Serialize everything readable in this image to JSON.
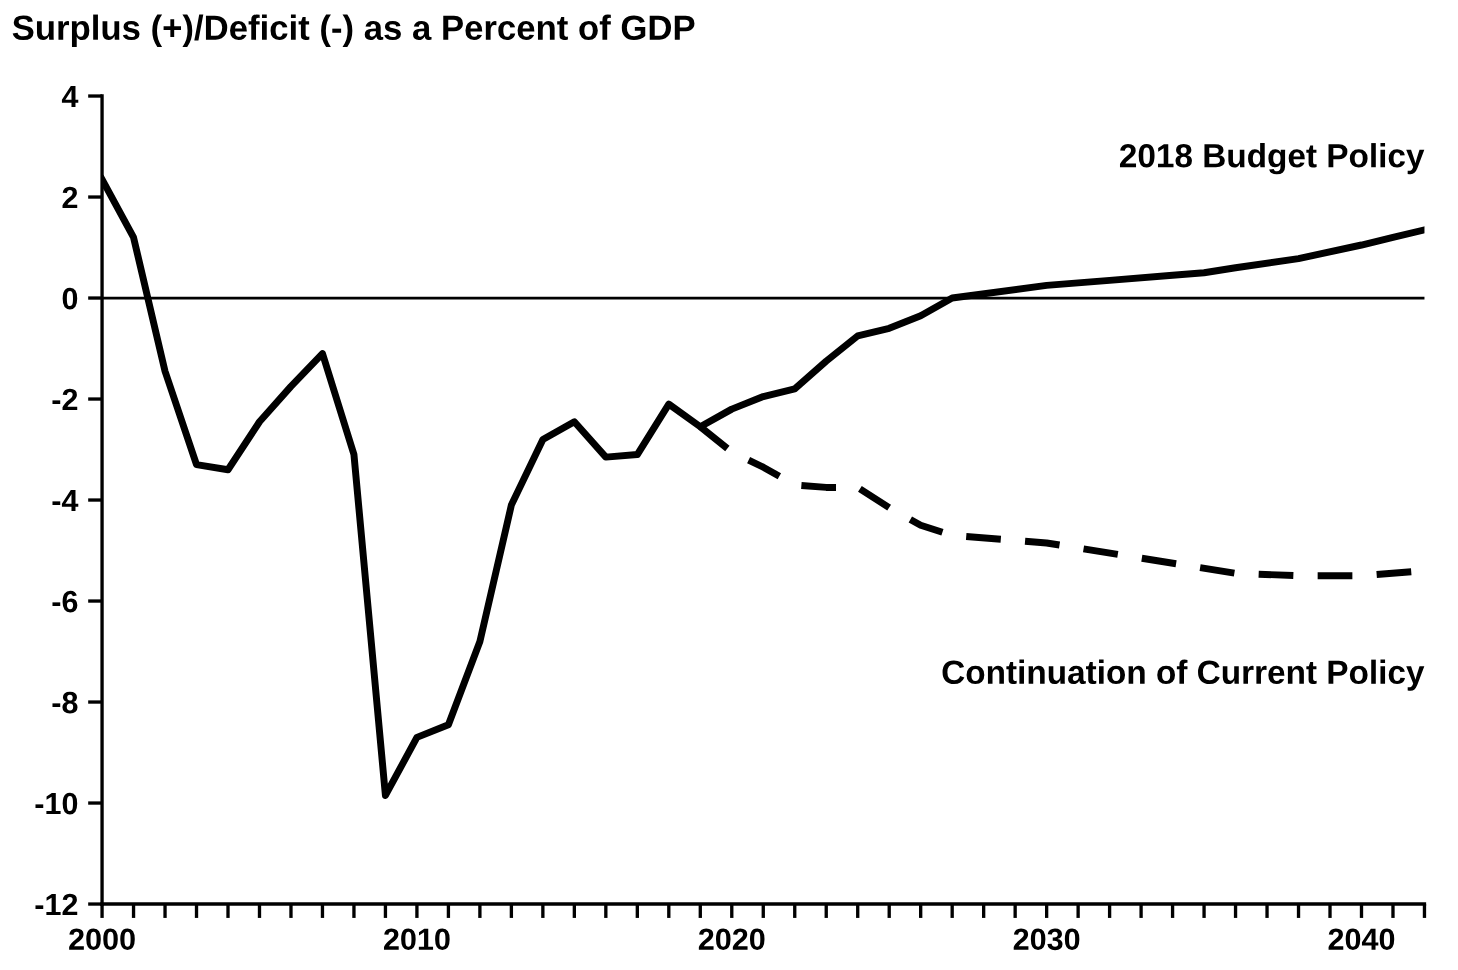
{
  "chart_data": {
    "type": "line",
    "title": "Surplus (+)/Deficit (-) as a Percent of GDP",
    "series": [
      {
        "name": "2018 Budget Policy",
        "color": "#000000",
        "line_style": "solid",
        "x": [
          2000,
          2001,
          2002,
          2003,
          2004,
          2005,
          2006,
          2007,
          2008,
          2009,
          2010,
          2011,
          2012,
          2013,
          2014,
          2015,
          2016,
          2017,
          2018,
          2019,
          2020,
          2021,
          2022,
          2023,
          2024,
          2025,
          2026,
          2027,
          2030,
          2032,
          2034,
          2035,
          2036,
          2038,
          2040,
          2041,
          2042
        ],
        "values": [
          2.35,
          1.2,
          -1.45,
          -3.3,
          -3.4,
          -2.45,
          -1.75,
          -1.1,
          -3.1,
          -9.85,
          -8.7,
          -8.45,
          -6.8,
          -4.1,
          -2.8,
          -2.45,
          -3.15,
          -3.1,
          -2.1,
          -2.55,
          -2.2,
          -1.95,
          -1.8,
          -1.25,
          -0.75,
          -0.6,
          -0.35,
          0.0,
          0.25,
          0.35,
          0.45,
          0.5,
          0.6,
          0.78,
          1.05,
          1.2,
          1.35
        ]
      },
      {
        "name": "Continuation of Current Policy",
        "color": "#000000",
        "line_style": "dashed",
        "x": [
          2019,
          2020,
          2021,
          2022,
          2023,
          2024,
          2025,
          2026,
          2027,
          2030,
          2033,
          2036,
          2038,
          2040,
          2042
        ],
        "values": [
          -2.55,
          -3.05,
          -3.35,
          -3.7,
          -3.75,
          -3.75,
          -4.15,
          -4.5,
          -4.7,
          -4.85,
          -5.15,
          -5.45,
          -5.5,
          -5.5,
          -5.4
        ]
      }
    ],
    "xlim": [
      2000,
      2042
    ],
    "xticks": [
      2000,
      {
        "value": 2001,
        "label": null
      },
      {
        "value": 2002,
        "label": null
      },
      {
        "value": 2003,
        "label": null
      },
      {
        "value": 2004,
        "label": null
      },
      {
        "value": 2005,
        "label": null
      },
      {
        "value": 2006,
        "label": null
      },
      {
        "value": 2007,
        "label": null
      },
      {
        "value": 2008,
        "label": null
      },
      {
        "value": 2009,
        "label": null
      },
      2010,
      {
        "value": 2011,
        "label": null
      },
      {
        "value": 2012,
        "label": null
      },
      {
        "value": 2013,
        "label": null
      },
      {
        "value": 2014,
        "label": null
      },
      {
        "value": 2015,
        "label": null
      },
      {
        "value": 2016,
        "label": null
      },
      {
        "value": 2017,
        "label": null
      },
      {
        "value": 2018,
        "label": null
      },
      {
        "value": 2019,
        "label": null
      },
      2020,
      {
        "value": 2021,
        "label": null
      },
      {
        "value": 2022,
        "label": null
      },
      {
        "value": 2023,
        "label": null
      },
      {
        "value": 2024,
        "label": null
      },
      {
        "value": 2025,
        "label": null
      },
      {
        "value": 2026,
        "label": null
      },
      {
        "value": 2027,
        "label": null
      },
      {
        "value": 2028,
        "label": null
      },
      {
        "value": 2029,
        "label": null
      },
      2030,
      {
        "value": 2031,
        "label": null
      },
      {
        "value": 2032,
        "label": null
      },
      {
        "value": 2033,
        "label": null
      },
      {
        "value": 2034,
        "label": null
      },
      {
        "value": 2035,
        "label": null
      },
      {
        "value": 2036,
        "label": null
      },
      {
        "value": 2037,
        "label": null
      },
      {
        "value": 2038,
        "label": null
      },
      {
        "value": 2039,
        "label": null
      },
      2040,
      {
        "value": 2041,
        "label": null
      },
      {
        "value": 2042,
        "label": null
      }
    ],
    "ylim": [
      -12,
      4
    ],
    "yticks": [
      -12,
      -10,
      -8,
      -6,
      -4,
      -2,
      0,
      2,
      4
    ],
    "ref_lines": [
      {
        "axis": "y",
        "value": 0,
        "color": "#000000"
      }
    ],
    "grid": false,
    "legend": false,
    "marker": "none"
  }
}
